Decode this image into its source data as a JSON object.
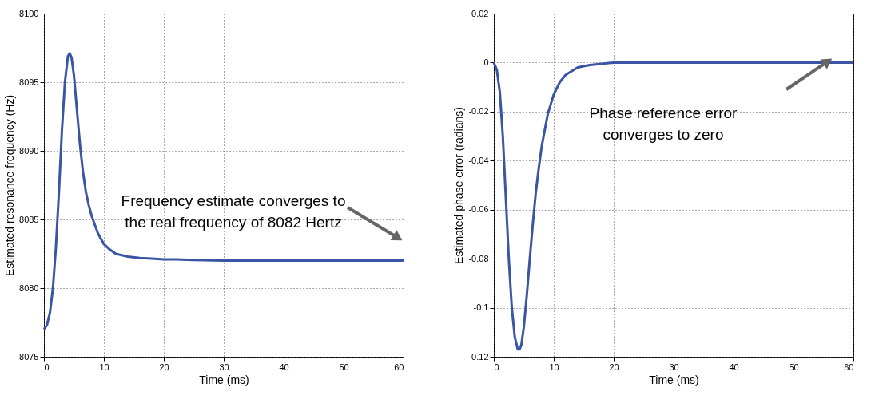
{
  "chart_data": [
    {
      "type": "line",
      "xlabel": "Time (ms)",
      "ylabel": "Estimated resonance frequency (Hz)",
      "x": [
        0,
        0.5,
        1,
        1.5,
        2,
        2.5,
        3,
        3.5,
        4,
        4.3,
        4.6,
        5,
        5.5,
        6,
        6.5,
        7,
        7.5,
        8,
        9,
        10,
        11,
        12,
        14,
        16,
        18,
        20,
        22,
        25,
        30,
        40,
        50,
        60
      ],
      "series": [
        {
          "color": "#3a55a4",
          "values": [
            8077,
            8077.3,
            8078.2,
            8080,
            8083,
            8087,
            8091.5,
            8095,
            8096.9,
            8097.1,
            8096.8,
            8095.5,
            8093,
            8090.5,
            8088.5,
            8087,
            8086,
            8085.2,
            8084,
            8083.2,
            8082.8,
            8082.5,
            8082.3,
            8082.2,
            8082.15,
            8082.1,
            8082.1,
            8082.05,
            8082,
            8082,
            8082,
            8082
          ]
        }
      ],
      "xlim": [
        0,
        60
      ],
      "xticks": [
        0,
        10,
        20,
        30,
        40,
        50,
        60
      ],
      "ylim": [
        8075,
        8100
      ],
      "yticks": [
        8075,
        8080,
        8085,
        8090,
        8095,
        8100
      ],
      "grid": true,
      "line_style": "solid",
      "marker": "none",
      "annotations": [
        "Frequency estimate converges to\nthe real frequency of 8082 Hertz"
      ]
    },
    {
      "type": "line",
      "xlabel": "Time (ms)",
      "ylabel": "Estimated phase error (radians)",
      "x": [
        0,
        0.5,
        1,
        1.5,
        2,
        2.5,
        3,
        3.5,
        4,
        4.3,
        4.6,
        5,
        5.5,
        6,
        6.5,
        7,
        7.5,
        8,
        9,
        10,
        11,
        12,
        14,
        16,
        18,
        20,
        25,
        30,
        40,
        50,
        60
      ],
      "series": [
        {
          "color": "#3a55a4",
          "values": [
            0,
            -0.003,
            -0.012,
            -0.03,
            -0.055,
            -0.08,
            -0.1,
            -0.112,
            -0.117,
            -0.117,
            -0.115,
            -0.108,
            -0.095,
            -0.08,
            -0.066,
            -0.053,
            -0.043,
            -0.034,
            -0.021,
            -0.013,
            -0.008,
            -0.005,
            -0.002,
            -0.001,
            -0.0005,
            0,
            0,
            0,
            0,
            0,
            0
          ]
        }
      ],
      "xlim": [
        0,
        60
      ],
      "xticks": [
        0,
        10,
        20,
        30,
        40,
        50,
        60
      ],
      "ylim": [
        -0.12,
        0.02
      ],
      "yticks": [
        -0.12,
        -0.1,
        -0.08,
        -0.06,
        -0.04,
        -0.02,
        0,
        0.02
      ],
      "grid": true,
      "line_style": "solid",
      "marker": "none",
      "annotations": [
        "Phase reference error\nconverges to zero"
      ]
    }
  ]
}
